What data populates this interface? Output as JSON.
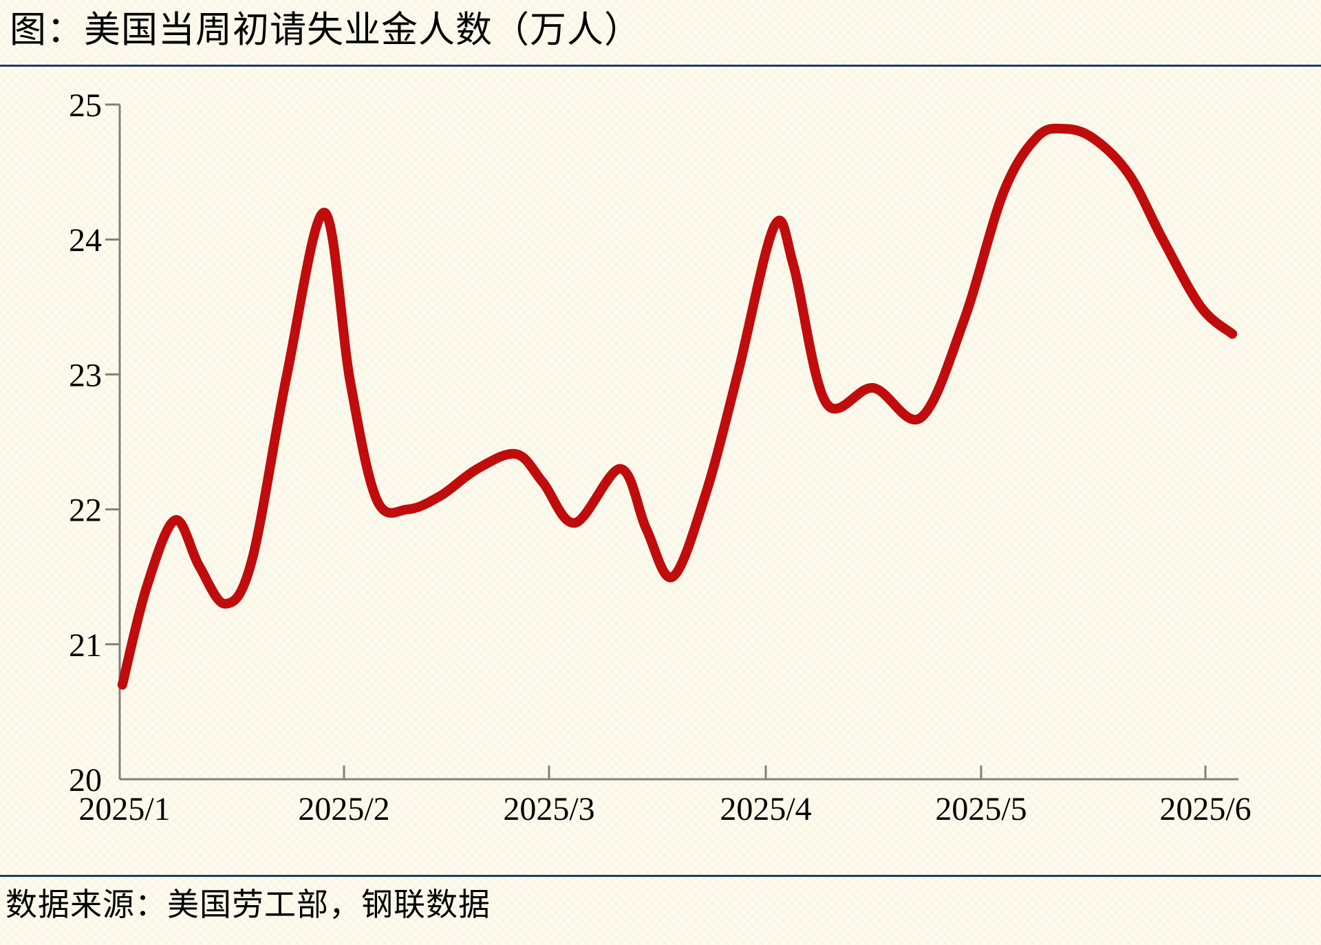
{
  "header": {
    "title": "图：美国当周初请失业金人数（万人）"
  },
  "footer": {
    "source_note": "数据来源：美国劳工部，钢联数据"
  },
  "colors": {
    "background": "#fdfbef",
    "divider": "#1e3a66",
    "axis": "#7f7f7f",
    "text": "#000000",
    "series": "#c00c0c"
  },
  "chart_data": {
    "type": "line",
    "title": "美国当周初请失业金人数（万人）",
    "unit": "万人",
    "xlabel": "",
    "ylabel": "",
    "ylim": [
      20,
      25
    ],
    "y_ticks": [
      20,
      21,
      22,
      23,
      24,
      25
    ],
    "x_tick_labels": [
      "2025/1",
      "2025/2",
      "2025/3",
      "2025/4",
      "2025/5",
      "2025/6"
    ],
    "grid": false,
    "legend": "none",
    "point_format": "x = month position on axis (1 = 2025/1, 6 = 2025/6), y = 万人 (10k persons)",
    "series": [
      {
        "name": "美国当周初请失业金人数（万人）",
        "color": "#c00c0c",
        "points": [
          [
            0.99,
            20.7
          ],
          [
            1.1,
            21.42
          ],
          [
            1.23,
            21.92
          ],
          [
            1.34,
            21.58
          ],
          [
            1.46,
            21.3
          ],
          [
            1.58,
            21.62
          ],
          [
            1.74,
            23.0
          ],
          [
            1.91,
            24.2
          ],
          [
            2.03,
            22.95
          ],
          [
            2.16,
            22.07
          ],
          [
            2.31,
            22.0
          ],
          [
            2.47,
            22.1
          ],
          [
            2.65,
            22.3
          ],
          [
            2.84,
            22.41
          ],
          [
            2.97,
            22.2
          ],
          [
            3.12,
            21.9
          ],
          [
            3.33,
            22.3
          ],
          [
            3.45,
            21.85
          ],
          [
            3.57,
            21.5
          ],
          [
            3.72,
            22.1
          ],
          [
            3.87,
            23.0
          ],
          [
            4.04,
            24.1
          ],
          [
            4.13,
            23.8
          ],
          [
            4.28,
            22.79
          ],
          [
            4.5,
            22.9
          ],
          [
            4.72,
            22.68
          ],
          [
            4.92,
            23.4
          ],
          [
            5.1,
            24.35
          ],
          [
            5.25,
            24.76
          ],
          [
            5.37,
            24.82
          ],
          [
            5.5,
            24.75
          ],
          [
            5.66,
            24.48
          ],
          [
            5.81,
            24.0
          ],
          [
            5.98,
            23.5
          ],
          [
            6.12,
            23.3
          ]
        ]
      }
    ]
  }
}
